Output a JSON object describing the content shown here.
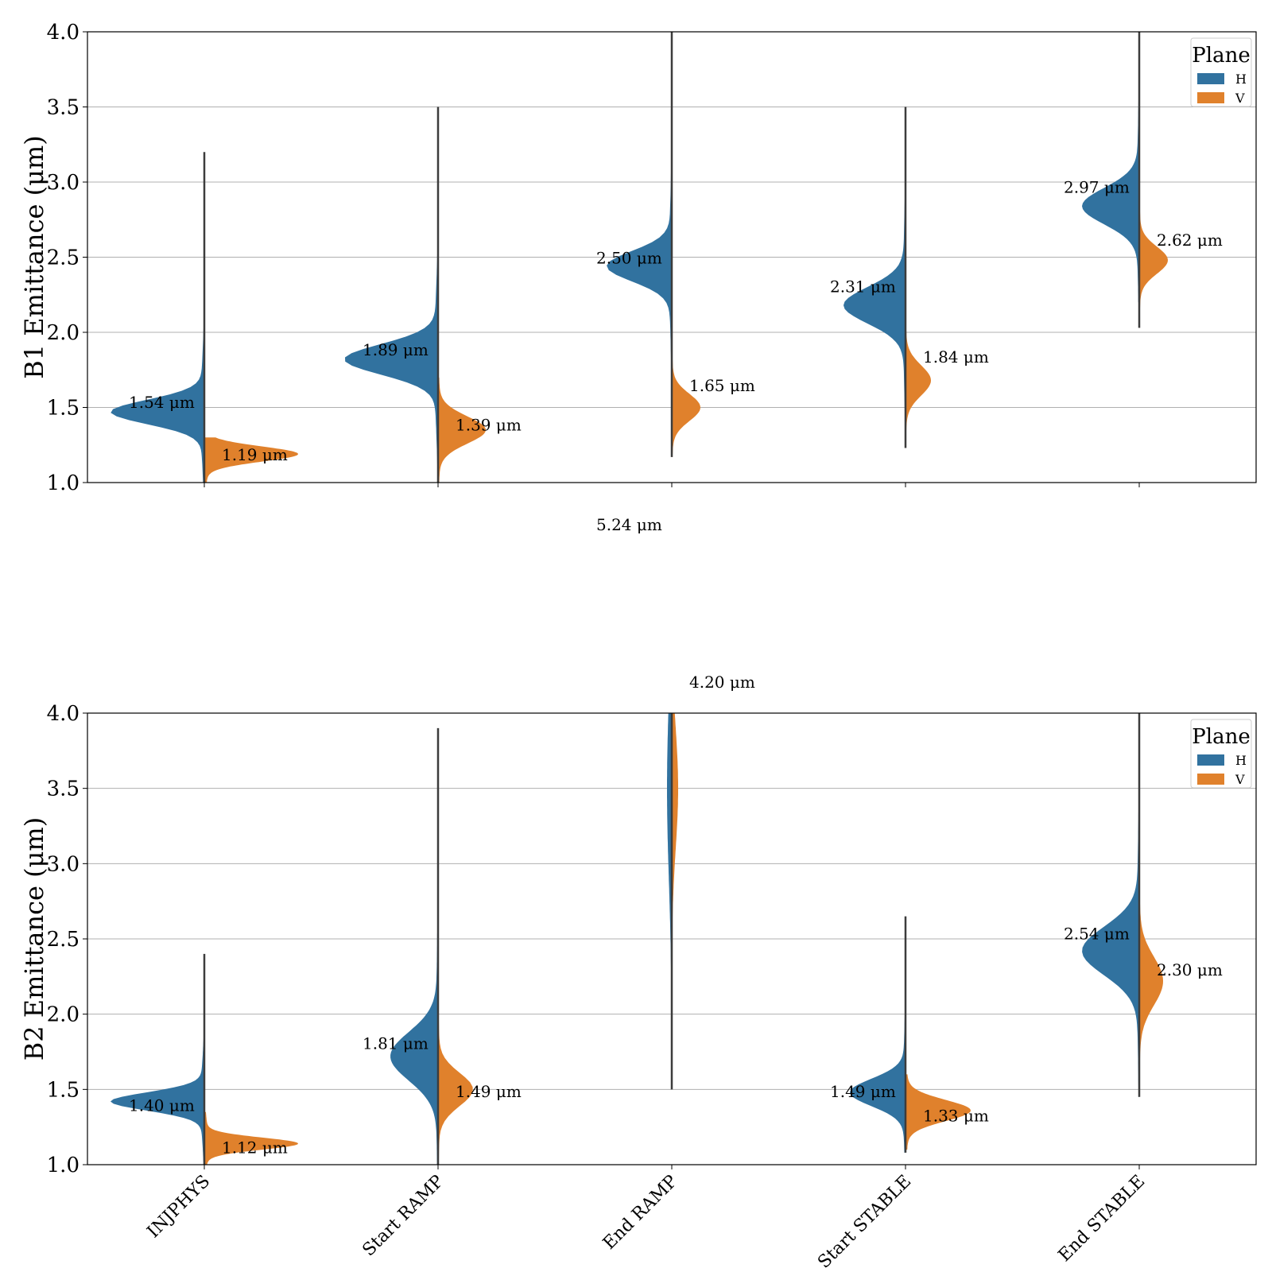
{
  "chart_data": [
    {
      "type": "violin",
      "title": "",
      "xlabel": "",
      "ylabel": "B1 Emittance (μm)",
      "ylim": [
        1.0,
        4.0
      ],
      "yticks": [
        "1.0",
        "1.5",
        "2.0",
        "2.5",
        "3.0",
        "3.5",
        "4.0"
      ],
      "grid": "horizontal",
      "split": true,
      "legend": {
        "title": "Plane",
        "placement": "top-right",
        "entries": [
          "H",
          "V"
        ]
      },
      "categories": [
        "INJPHYS",
        "Start RAMP",
        "End RAMP",
        "Start STABLE",
        "End STABLE"
      ],
      "series": [
        {
          "name": "H",
          "color": "#31729f",
          "medians": [
            1.54,
            1.89,
            2.5,
            2.31,
            2.97
          ],
          "labels": [
            "1.54 μm",
            "1.89 μm",
            "2.50 μm",
            "2.31 μm",
            "2.97 μm"
          ],
          "ranges": [
            [
              1.0,
              3.2
            ],
            [
              1.0,
              3.5
            ],
            [
              1.2,
              4.0
            ],
            [
              1.3,
              3.5
            ],
            [
              2.2,
              4.0
            ]
          ]
        },
        {
          "name": "V",
          "color": "#e0812c",
          "medians": [
            1.19,
            1.39,
            1.65,
            1.84,
            2.62
          ],
          "labels": [
            "1.19 μm",
            "1.39 μm",
            "1.65 μm",
            "1.84 μm",
            "2.62 μm"
          ],
          "ranges": [
            [
              1.0,
              1.3
            ],
            [
              1.0,
              1.7
            ],
            [
              1.17,
              2.2
            ],
            [
              1.23,
              2.5
            ],
            [
              2.03,
              3.1
            ]
          ]
        }
      ],
      "annotations": [
        "5.24 μm"
      ]
    },
    {
      "type": "violin",
      "title": "",
      "xlabel": "",
      "ylabel": "B2 Emittance (μm)",
      "ylim": [
        1.0,
        4.0
      ],
      "yticks": [
        "1.0",
        "1.5",
        "2.0",
        "2.5",
        "3.0",
        "3.5",
        "4.0"
      ],
      "grid": "horizontal",
      "split": true,
      "legend": {
        "title": "Plane",
        "placement": "top-right",
        "entries": [
          "H",
          "V"
        ]
      },
      "categories": [
        "INJPHYS",
        "Start RAMP",
        "End RAMP",
        "Start STABLE",
        "End STABLE"
      ],
      "series": [
        {
          "name": "H",
          "color": "#31729f",
          "medians": [
            1.4,
            1.81,
            null,
            1.49,
            2.54
          ],
          "labels": [
            "1.40 μm",
            "1.81 μm",
            "",
            "1.49 μm",
            "2.54 μm"
          ],
          "ranges": [
            [
              1.0,
              2.4
            ],
            [
              1.0,
              2.6
            ],
            [
              1.5,
              4.0
            ],
            [
              1.08,
              2.65
            ],
            [
              1.45,
              4.0
            ]
          ]
        },
        {
          "name": "V",
          "color": "#e0812c",
          "medians": [
            1.12,
            1.49,
            4.2,
            1.33,
            2.3
          ],
          "labels": [
            "1.12 μm",
            "1.49 μm",
            "4.20 μm",
            "1.33 μm",
            "2.30 μm"
          ],
          "ranges": [
            [
              1.0,
              1.35
            ],
            [
              1.0,
              3.9
            ],
            [
              2.2,
              4.0
            ],
            [
              1.1,
              1.6
            ],
            [
              1.6,
              3.2
            ]
          ]
        }
      ]
    }
  ]
}
